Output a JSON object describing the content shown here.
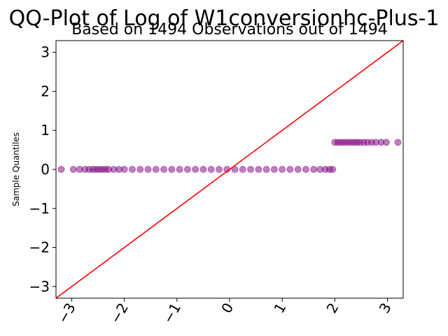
{
  "chart_data": {
    "type": "scatter",
    "title": "QQ-Plot of Log of W1conversionhc-Plus-1",
    "subtitle": "Based on 1494 Observations out of 1494",
    "xlabel": "",
    "ylabel": "Sample Quantiles",
    "xlim": [
      -3.3,
      3.3
    ],
    "ylim": [
      -3.3,
      3.3
    ],
    "x_ticks": [
      -3,
      -2,
      -1,
      0,
      1,
      2,
      3
    ],
    "x_tick_labels": [
      "−3",
      "−2",
      "−1",
      "0",
      "1",
      "2",
      "3"
    ],
    "y_ticks": [
      -3,
      -2,
      -1,
      0,
      1,
      2,
      3
    ],
    "y_tick_labels": [
      "−3",
      "−2",
      "−1",
      "0",
      "1",
      "2",
      "3"
    ],
    "grid": false,
    "marker_color": "#800080",
    "reference_line_color": "#ff0000",
    "reference_line": {
      "x": [
        -3.3,
        3.3
      ],
      "y": [
        -3.3,
        3.3
      ]
    },
    "points": [
      {
        "x": -3.2,
        "y": 0.0
      },
      {
        "x": -2.97,
        "y": 0.0
      },
      {
        "x": -2.85,
        "y": 0.0
      },
      {
        "x": -2.75,
        "y": 0.0
      },
      {
        "x": -2.67,
        "y": 0.0
      },
      {
        "x": -2.6,
        "y": 0.0
      },
      {
        "x": -2.54,
        "y": 0.0
      },
      {
        "x": -2.48,
        "y": 0.0
      },
      {
        "x": -2.42,
        "y": 0.0
      },
      {
        "x": -2.36,
        "y": 0.0
      },
      {
        "x": -2.3,
        "y": 0.0
      },
      {
        "x": -2.2,
        "y": 0.0
      },
      {
        "x": -2.1,
        "y": 0.0
      },
      {
        "x": -2.0,
        "y": 0.0
      },
      {
        "x": -1.85,
        "y": 0.0
      },
      {
        "x": -1.7,
        "y": 0.0
      },
      {
        "x": -1.55,
        "y": 0.0
      },
      {
        "x": -1.4,
        "y": 0.0
      },
      {
        "x": -1.25,
        "y": 0.0
      },
      {
        "x": -1.1,
        "y": 0.0
      },
      {
        "x": -0.95,
        "y": 0.0
      },
      {
        "x": -0.8,
        "y": 0.0
      },
      {
        "x": -0.65,
        "y": 0.0
      },
      {
        "x": -0.5,
        "y": 0.0
      },
      {
        "x": -0.35,
        "y": 0.0
      },
      {
        "x": -0.2,
        "y": 0.0
      },
      {
        "x": -0.05,
        "y": 0.0
      },
      {
        "x": 0.1,
        "y": 0.0
      },
      {
        "x": 0.25,
        "y": 0.0
      },
      {
        "x": 0.4,
        "y": 0.0
      },
      {
        "x": 0.55,
        "y": 0.0
      },
      {
        "x": 0.7,
        "y": 0.0
      },
      {
        "x": 0.85,
        "y": 0.0
      },
      {
        "x": 1.0,
        "y": 0.0
      },
      {
        "x": 1.15,
        "y": 0.0
      },
      {
        "x": 1.3,
        "y": 0.0
      },
      {
        "x": 1.45,
        "y": 0.0
      },
      {
        "x": 1.6,
        "y": 0.0
      },
      {
        "x": 1.72,
        "y": 0.0
      },
      {
        "x": 1.82,
        "y": 0.0
      },
      {
        "x": 1.9,
        "y": 0.0
      },
      {
        "x": 1.96,
        "y": 0.0
      },
      {
        "x": 2.0,
        "y": 0.693
      },
      {
        "x": 2.06,
        "y": 0.693
      },
      {
        "x": 2.12,
        "y": 0.693
      },
      {
        "x": 2.18,
        "y": 0.693
      },
      {
        "x": 2.24,
        "y": 0.693
      },
      {
        "x": 2.3,
        "y": 0.693
      },
      {
        "x": 2.36,
        "y": 0.693
      },
      {
        "x": 2.42,
        "y": 0.693
      },
      {
        "x": 2.48,
        "y": 0.693
      },
      {
        "x": 2.55,
        "y": 0.693
      },
      {
        "x": 2.62,
        "y": 0.693
      },
      {
        "x": 2.7,
        "y": 0.693
      },
      {
        "x": 2.78,
        "y": 0.693
      },
      {
        "x": 2.88,
        "y": 0.693
      },
      {
        "x": 2.98,
        "y": 0.693
      },
      {
        "x": 3.2,
        "y": 0.693
      }
    ]
  }
}
